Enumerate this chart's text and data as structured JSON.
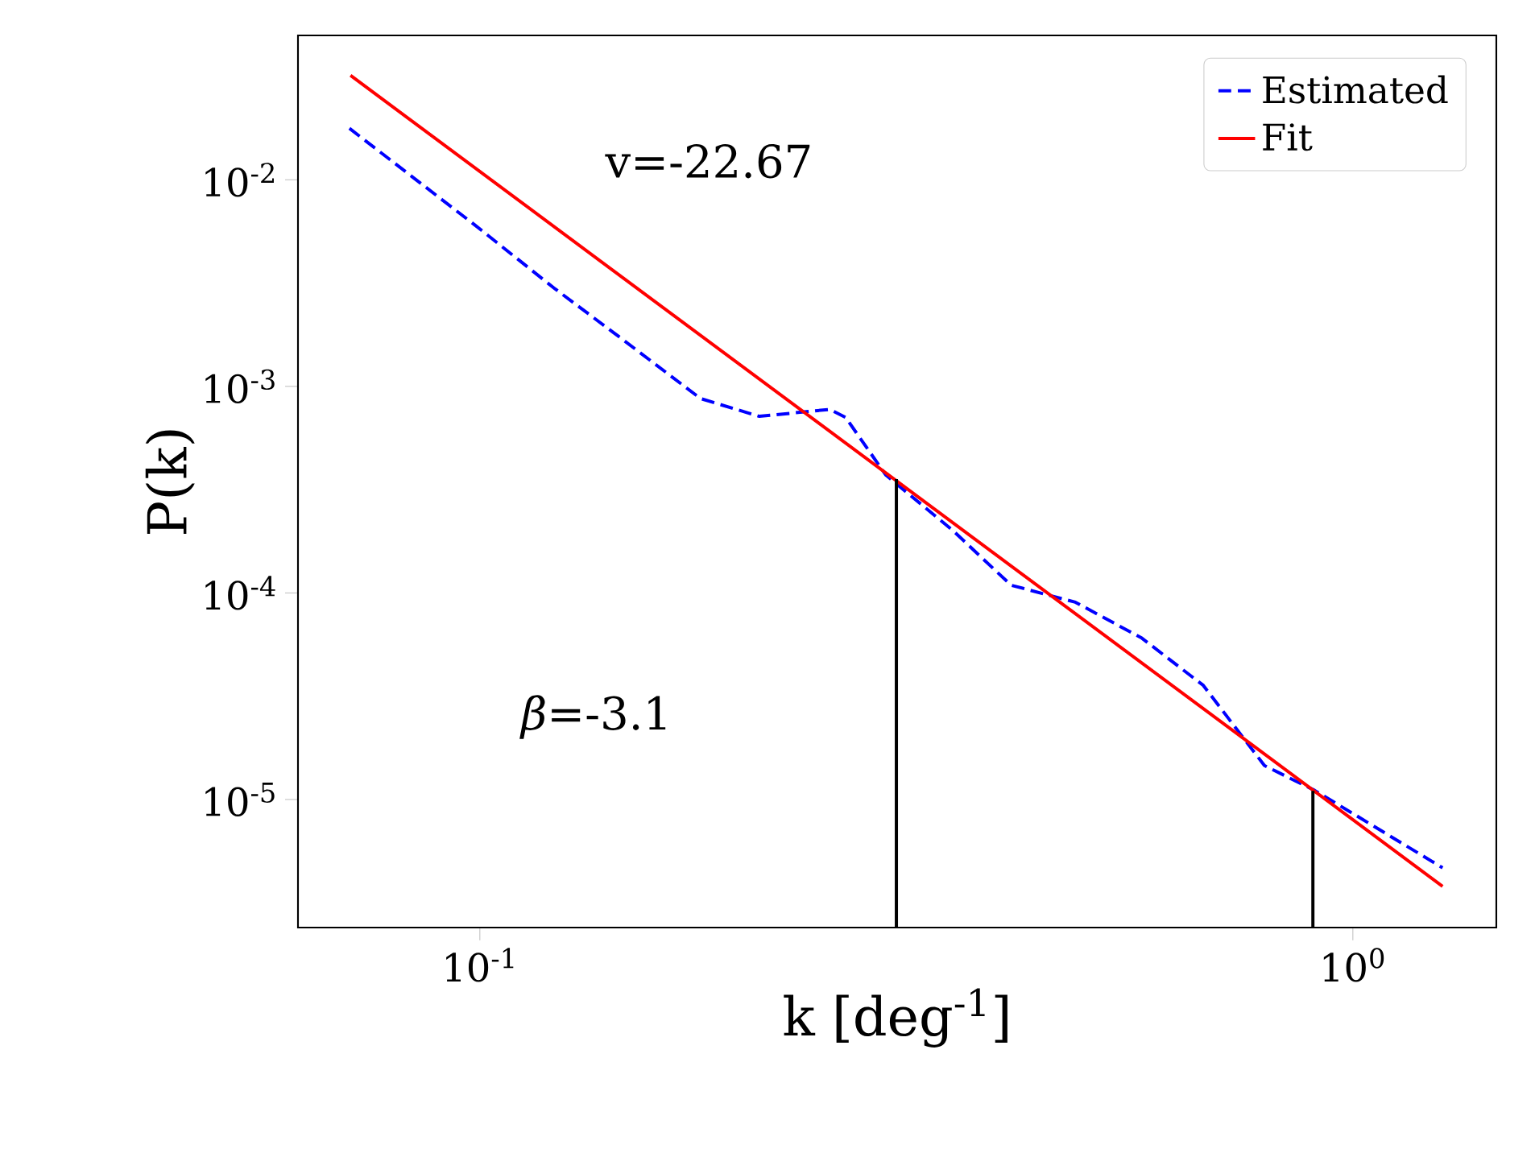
{
  "chart_data": {
    "type": "line",
    "xlabel": "k [deg$^{-1}$]",
    "ylabel": "P(k)",
    "log": "xy",
    "xlim": [
      0.0619,
      1.46
    ],
    "ylim": [
      2.4e-06,
      0.05
    ],
    "xticks": [
      {
        "value": 0.1,
        "label": "10$^{-1}$"
      },
      {
        "value": 1,
        "label": "10$^{0}$"
      }
    ],
    "yticks": [
      {
        "value": 1e-05,
        "label": "10$^{-5}$"
      },
      {
        "value": 0.0001,
        "label": "10$^{-4}$"
      },
      {
        "value": 0.001,
        "label": "10$^{-3}$"
      },
      {
        "value": 0.01,
        "label": "10$^{-2}$"
      }
    ],
    "legend": "top right",
    "grid": false,
    "series": [
      {
        "name": "Estimated",
        "color": "#0000ff",
        "line_style": "dashed",
        "x": [
          0.0709,
          0.0986,
          0.122,
          0.1446,
          0.179,
          0.209,
          0.2516,
          0.2624,
          0.2918,
          0.348,
          0.406,
          0.481,
          0.5733,
          0.674,
          0.792,
          0.904,
          1.267
        ],
        "values": [
          0.01774,
          0.00606,
          0.00296,
          0.00173,
          0.000873,
          0.000716,
          0.000774,
          0.000708,
          0.000372,
          0.000201,
          0.000109,
          9.02e-05,
          6.04e-05,
          3.57e-05,
          1.46e-05,
          1.107e-05,
          4.67e-06
        ]
      },
      {
        "name": "Fit",
        "color": "#ff0000",
        "line_style": "solid",
        "x": [
          0.0711,
          1.267
        ],
        "values": [
          0.032,
          3.8e-06
        ]
      },
      {
        "color": "#000000",
        "line_style": "solid",
        "x": [
          0.3,
          0.3
        ],
        "values": [
          2.4e-06,
          0.000356
        ]
      },
      {
        "color": "#000000",
        "line_style": "solid",
        "x": [
          0.9,
          0.9
        ],
        "values": [
          2.4e-06,
          1.1e-05
        ]
      }
    ],
    "annotations": [
      "v=-22.67",
      "*β*=-3.1"
    ]
  }
}
